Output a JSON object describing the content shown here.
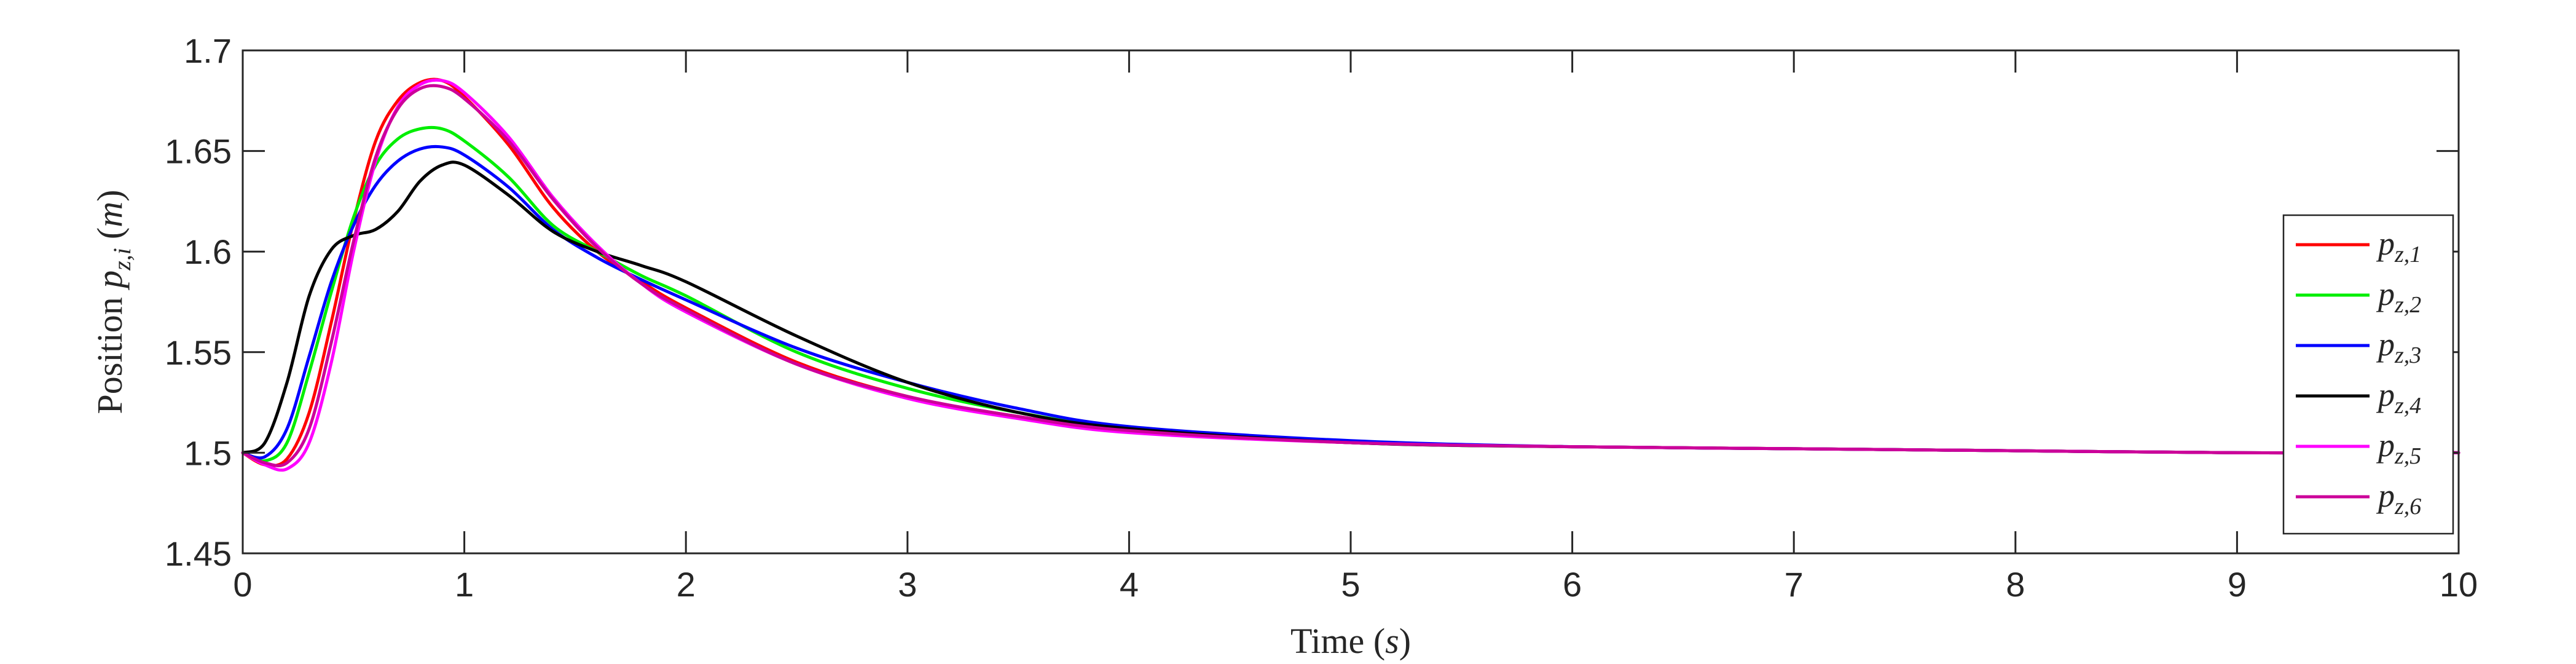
{
  "chart_data": {
    "type": "line",
    "xlabel": {
      "main": "Time ",
      "var": "s"
    },
    "ylabel": {
      "main": "Position ",
      "sym": "p",
      "sub": "z,i",
      "unit": "m"
    },
    "xlim": [
      0,
      10
    ],
    "ylim": [
      1.45,
      1.7
    ],
    "xticks": [
      "0",
      "1",
      "2",
      "3",
      "4",
      "5",
      "6",
      "7",
      "8",
      "9",
      "10"
    ],
    "yticks": [
      "1.45",
      "1.5",
      "1.55",
      "1.6",
      "1.65",
      "1.7"
    ],
    "grid": false,
    "legend_position": "right",
    "series": [
      {
        "name": "p_{z,1}",
        "sym": "p",
        "sub": "z,1",
        "color": "#ff0000",
        "x": [
          0,
          0.1,
          0.2,
          0.3,
          0.4,
          0.5,
          0.6,
          0.7,
          0.8,
          0.9,
          1.0,
          1.2,
          1.4,
          1.6,
          1.8,
          2.0,
          2.5,
          3.0,
          3.5,
          4.0,
          5.0,
          6.0,
          7.0,
          8.0,
          9.0,
          10.0
        ],
        "y": [
          1.5,
          1.494,
          1.497,
          1.52,
          1.565,
          1.615,
          1.655,
          1.675,
          1.684,
          1.685,
          1.677,
          1.653,
          1.622,
          1.6,
          1.585,
          1.572,
          1.545,
          1.528,
          1.518,
          1.511,
          1.505,
          1.503,
          1.502,
          1.501,
          1.5,
          1.5
        ]
      },
      {
        "name": "p_{z,2}",
        "sym": "p",
        "sub": "z,2",
        "color": "#00ee00",
        "x": [
          0,
          0.1,
          0.2,
          0.3,
          0.4,
          0.5,
          0.6,
          0.7,
          0.8,
          0.9,
          1.0,
          1.2,
          1.4,
          1.6,
          1.8,
          2.0,
          2.5,
          3.0,
          3.5,
          4.0,
          5.0,
          6.0,
          7.0,
          8.0,
          9.0,
          10.0
        ],
        "y": [
          1.5,
          1.496,
          1.505,
          1.54,
          1.58,
          1.617,
          1.643,
          1.656,
          1.661,
          1.661,
          1.655,
          1.637,
          1.613,
          1.6,
          1.588,
          1.578,
          1.55,
          1.532,
          1.52,
          1.512,
          1.505,
          1.503,
          1.502,
          1.501,
          1.5,
          1.5
        ]
      },
      {
        "name": "p_{z,3}",
        "sym": "p",
        "sub": "z,3",
        "color": "#0000ff",
        "x": [
          0,
          0.1,
          0.2,
          0.3,
          0.4,
          0.5,
          0.6,
          0.7,
          0.8,
          0.9,
          1.0,
          1.2,
          1.4,
          1.6,
          1.8,
          2.0,
          2.5,
          3.0,
          3.5,
          4.0,
          5.0,
          6.0,
          7.0,
          8.0,
          9.0,
          10.0
        ],
        "y": [
          1.5,
          1.498,
          1.512,
          1.548,
          1.585,
          1.613,
          1.633,
          1.645,
          1.651,
          1.652,
          1.648,
          1.632,
          1.611,
          1.597,
          1.586,
          1.576,
          1.552,
          1.535,
          1.522,
          1.513,
          1.506,
          1.503,
          1.502,
          1.501,
          1.5,
          1.5
        ]
      },
      {
        "name": "p_{z,4}",
        "sym": "p",
        "sub": "z,4",
        "color": "#000000",
        "x": [
          0,
          0.1,
          0.2,
          0.3,
          0.4,
          0.5,
          0.6,
          0.7,
          0.8,
          0.9,
          1.0,
          1.2,
          1.4,
          1.6,
          1.8,
          2.0,
          2.5,
          3.0,
          3.5,
          4.0,
          5.0,
          6.0,
          7.0,
          8.0,
          9.0,
          10.0
        ],
        "y": [
          1.5,
          1.505,
          1.535,
          1.578,
          1.601,
          1.608,
          1.611,
          1.62,
          1.635,
          1.643,
          1.643,
          1.628,
          1.61,
          1.6,
          1.593,
          1.585,
          1.558,
          1.535,
          1.52,
          1.512,
          1.505,
          1.503,
          1.502,
          1.501,
          1.5,
          1.5
        ]
      },
      {
        "name": "p_{z,5}",
        "sym": "p",
        "sub": "z,5",
        "color": "#ff00ff",
        "x": [
          0,
          0.1,
          0.2,
          0.3,
          0.4,
          0.5,
          0.6,
          0.7,
          0.8,
          0.9,
          1.0,
          1.2,
          1.4,
          1.6,
          1.8,
          2.0,
          2.5,
          3.0,
          3.5,
          4.0,
          5.0,
          6.0,
          7.0,
          8.0,
          9.0,
          10.0
        ],
        "y": [
          1.5,
          1.494,
          1.492,
          1.505,
          1.545,
          1.6,
          1.645,
          1.672,
          1.683,
          1.685,
          1.679,
          1.657,
          1.627,
          1.603,
          1.584,
          1.57,
          1.544,
          1.527,
          1.517,
          1.51,
          1.505,
          1.503,
          1.502,
          1.501,
          1.5,
          1.5
        ]
      },
      {
        "name": "p_{z,6}",
        "sym": "p",
        "sub": "z,6",
        "color": "#cc0099",
        "x": [
          0,
          0.1,
          0.2,
          0.3,
          0.4,
          0.5,
          0.6,
          0.7,
          0.8,
          0.9,
          1.0,
          1.2,
          1.4,
          1.6,
          1.8,
          2.0,
          2.5,
          3.0,
          3.5,
          4.0,
          5.0,
          6.0,
          7.0,
          8.0,
          9.0,
          10.0
        ],
        "y": [
          1.5,
          1.495,
          1.495,
          1.512,
          1.555,
          1.605,
          1.647,
          1.671,
          1.681,
          1.682,
          1.676,
          1.655,
          1.626,
          1.602,
          1.584,
          1.571,
          1.544,
          1.528,
          1.518,
          1.511,
          1.505,
          1.503,
          1.502,
          1.501,
          1.5,
          1.5
        ]
      }
    ]
  }
}
